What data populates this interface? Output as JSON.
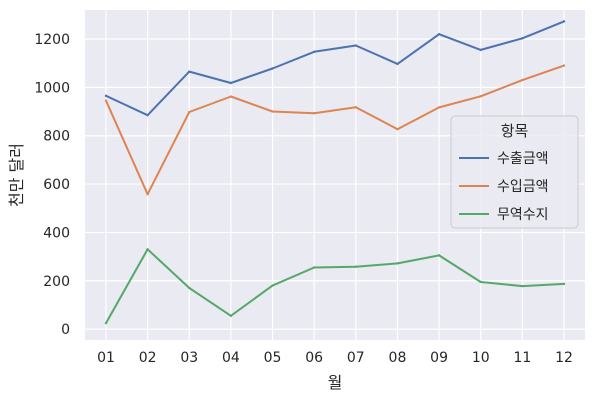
{
  "chart_data": {
    "type": "line",
    "title": "",
    "xlabel": "월",
    "ylabel": "천만 달러",
    "categories": [
      "01",
      "02",
      "03",
      "04",
      "05",
      "06",
      "07",
      "08",
      "09",
      "10",
      "11",
      "12"
    ],
    "yticks": [
      0,
      200,
      400,
      600,
      800,
      1000,
      1200
    ],
    "ylim": [
      -45,
      1320
    ],
    "grid": true,
    "legend": {
      "title": "항목",
      "placement": "center-right"
    },
    "series": [
      {
        "name": "수출금액",
        "color": "#4c72b0",
        "values": [
          965,
          885,
          1065,
          1018,
          1078,
          1147,
          1173,
          1097,
          1220,
          1155,
          1203,
          1273
        ]
      },
      {
        "name": "수입금액",
        "color": "#dd8452",
        "values": [
          945,
          558,
          898,
          962,
          900,
          893,
          918,
          827,
          917,
          963,
          1030,
          1090
        ]
      },
      {
        "name": "무역수지",
        "color": "#55a868",
        "values": [
          25,
          330,
          170,
          55,
          180,
          255,
          258,
          272,
          305,
          195,
          178,
          187
        ]
      }
    ]
  },
  "colors": {
    "plot_background": "#eaeaf2",
    "grid": "#ffffff"
  }
}
